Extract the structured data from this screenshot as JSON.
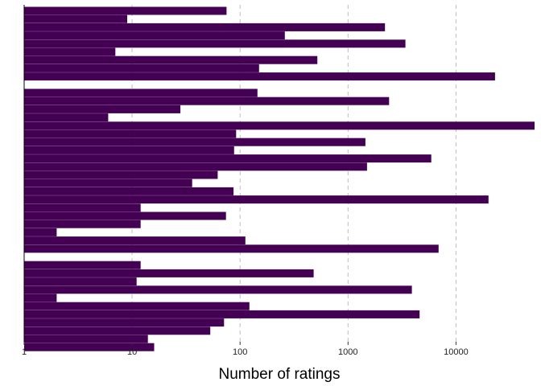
{
  "chart_data": {
    "type": "bar",
    "orientation": "horizontal",
    "xlabel": "Number of ratings",
    "ylabel": "",
    "x_scale": "log10",
    "xlim": [
      1,
      60000
    ],
    "x_ticks": [
      "1",
      "10",
      "100",
      "1000",
      "10000"
    ],
    "x_tick_values": [
      1,
      10,
      100,
      1000,
      10000
    ],
    "grid": "vertical dashed major gridlines",
    "bar_color": "#440154",
    "values": [
      75,
      9,
      2200,
      260,
      3400,
      7,
      520,
      150,
      23000,
      145,
      2400,
      28,
      6,
      60000,
      92,
      1450,
      88,
      5900,
      1500,
      62,
      36,
      87,
      20000,
      12,
      74,
      12,
      2,
      112,
      6900,
      12,
      480,
      11,
      3900,
      2,
      122,
      4600,
      71,
      53,
      14,
      16
    ]
  },
  "colors": {
    "bar": "#440154",
    "grid": "#bdbdbd",
    "axis": "#000000",
    "background": "#ffffff"
  }
}
